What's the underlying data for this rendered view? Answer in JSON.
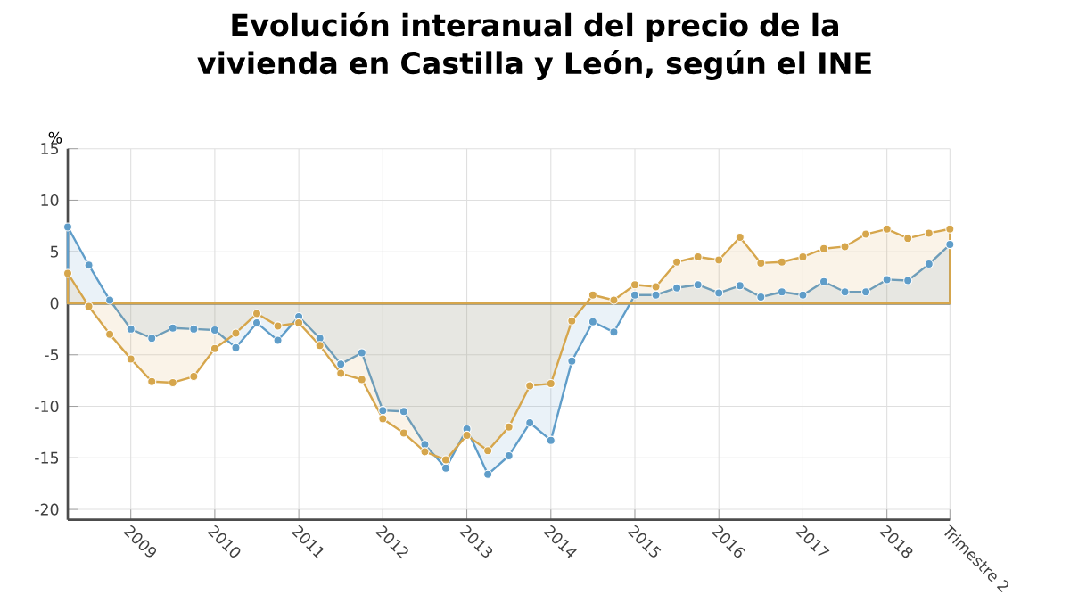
{
  "chart_data": {
    "type": "area",
    "title": "Evolución interanual del precio de la vivienda en Castilla y León, según el INE",
    "ylabel": "%",
    "categories": [
      null,
      null,
      null,
      "2009",
      null,
      null,
      null,
      "2010",
      null,
      null,
      null,
      "2011",
      null,
      null,
      null,
      "2012",
      null,
      null,
      null,
      "2013",
      null,
      null,
      null,
      "2014",
      null,
      null,
      null,
      "2015",
      null,
      null,
      null,
      "2016",
      null,
      null,
      null,
      "2017",
      null,
      null,
      null,
      "2018",
      null,
      null,
      "Trimestre 2"
    ],
    "series": [
      {
        "color": "#5f9dc9",
        "values": [
          7.4,
          3.7,
          0.3,
          -2.5,
          -3.4,
          -2.4,
          -2.5,
          -2.6,
          -4.3,
          -1.9,
          -3.6,
          -1.3,
          -3.4,
          -5.9,
          -4.8,
          -10.4,
          -10.5,
          -13.7,
          -16.0,
          -12.2,
          -16.6,
          -14.8,
          -11.6,
          -13.3,
          -5.6,
          -1.8,
          -2.8,
          0.8,
          0.8,
          1.5,
          1.8,
          1.0,
          1.7,
          0.6,
          1.1,
          0.8,
          2.1,
          1.1,
          1.1,
          2.3,
          2.2,
          3.8,
          5.7
        ]
      },
      {
        "color": "#d6a64c",
        "values": [
          2.9,
          -0.3,
          -3.0,
          -5.4,
          -7.6,
          -7.7,
          -7.1,
          -4.4,
          -2.9,
          -1.0,
          -2.2,
          -1.9,
          -4.1,
          -6.8,
          -7.4,
          -11.2,
          -12.6,
          -14.4,
          -15.2,
          -12.8,
          -14.3,
          -12.0,
          -8.0,
          -7.8,
          -1.7,
          0.8,
          0.3,
          1.8,
          1.6,
          4.0,
          4.5,
          4.2,
          6.4,
          3.9,
          4.0,
          4.5,
          5.3,
          5.5,
          6.7,
          7.2,
          6.3,
          6.8,
          7.2
        ]
      }
    ],
    "ylim": [
      -21,
      15
    ],
    "yticks": [
      -20,
      -15,
      -10,
      -5,
      0,
      5,
      10,
      15
    ],
    "grid": true,
    "marker": "circle",
    "line_style": "solid",
    "ref_lines": [
      {
        "axis": "y",
        "value": 0,
        "color": "#555555"
      }
    ]
  }
}
